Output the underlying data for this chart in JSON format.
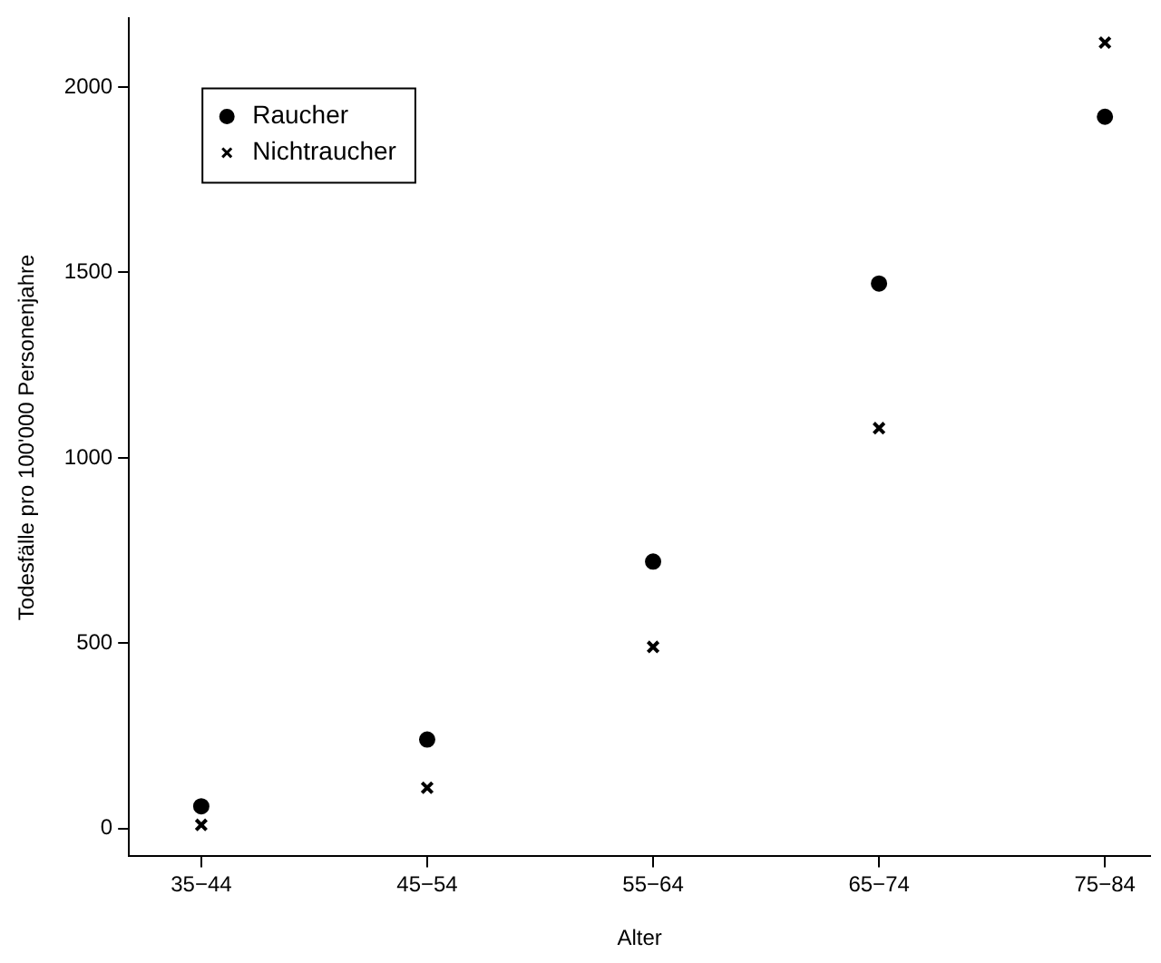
{
  "chart_data": {
    "type": "scatter",
    "xlabel": "Alter",
    "ylabel": "Todesfälle pro 100'000 Personenjahre",
    "categories": [
      "35−44",
      "45−54",
      "55−64",
      "65−74",
      "75−84"
    ],
    "series": [
      {
        "name": "Raucher",
        "color": "#000000",
        "marker": "circle",
        "values": [
          60,
          240,
          720,
          1470,
          1920
        ]
      },
      {
        "name": "Nichtraucher",
        "color": "#000000",
        "marker": "cross",
        "values": [
          10,
          110,
          490,
          1080,
          2120
        ]
      }
    ],
    "ylim": [
      -75,
      2185
    ],
    "yticks": [
      0,
      500,
      1000,
      1500,
      2000
    ],
    "grid": false,
    "legend": "top left"
  }
}
